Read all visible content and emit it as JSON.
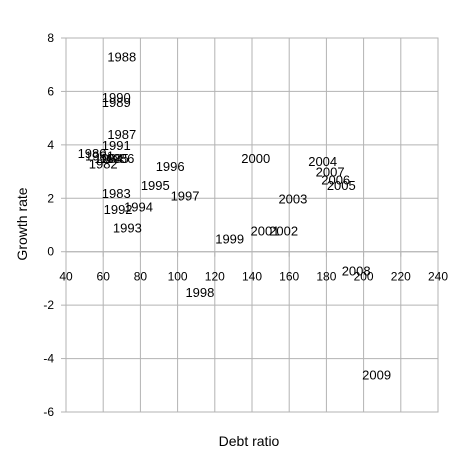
{
  "chart_data": {
    "type": "scatter",
    "title": "",
    "xlabel": "Debt ratio",
    "ylabel": "Growth rate",
    "xlim": [
      40,
      240
    ],
    "ylim": [
      -6,
      8
    ],
    "xticks": [
      40,
      60,
      80,
      100,
      120,
      140,
      160,
      180,
      200,
      220,
      240
    ],
    "yticks": [
      -6,
      -4,
      -2,
      0,
      2,
      4,
      6,
      8
    ],
    "grid": true,
    "legend": "none",
    "marker": "none",
    "points": [
      {
        "label": "1980",
        "x": 54,
        "y": 3.7
      },
      {
        "label": "1981",
        "x": 58,
        "y": 3.6
      },
      {
        "label": "1982",
        "x": 60,
        "y": 3.3
      },
      {
        "label": "1983",
        "x": 67,
        "y": 2.2
      },
      {
        "label": "1984",
        "x": 63,
        "y": 3.5
      },
      {
        "label": "1985",
        "x": 66,
        "y": 3.5
      },
      {
        "label": "1986",
        "x": 69,
        "y": 3.5
      },
      {
        "label": "1987",
        "x": 70,
        "y": 4.4
      },
      {
        "label": "1988",
        "x": 70,
        "y": 7.3
      },
      {
        "label": "1989",
        "x": 67,
        "y": 5.6
      },
      {
        "label": "1990",
        "x": 67,
        "y": 5.8
      },
      {
        "label": "1991",
        "x": 67,
        "y": 4.0
      },
      {
        "label": "1992",
        "x": 68,
        "y": 1.6
      },
      {
        "label": "1993",
        "x": 73,
        "y": 0.9
      },
      {
        "label": "1994",
        "x": 79,
        "y": 1.7
      },
      {
        "label": "1995",
        "x": 88,
        "y": 2.5
      },
      {
        "label": "1996",
        "x": 96,
        "y": 3.2
      },
      {
        "label": "1997",
        "x": 104,
        "y": 2.1
      },
      {
        "label": "1998",
        "x": 112,
        "y": -1.5
      },
      {
        "label": "1999",
        "x": 128,
        "y": 0.5
      },
      {
        "label": "2000",
        "x": 142,
        "y": 3.5
      },
      {
        "label": "2001",
        "x": 147,
        "y": 0.8
      },
      {
        "label": "2002",
        "x": 157,
        "y": 0.8
      },
      {
        "label": "2003",
        "x": 162,
        "y": 2.0
      },
      {
        "label": "2004",
        "x": 178,
        "y": 3.4
      },
      {
        "label": "2005",
        "x": 188,
        "y": 2.5
      },
      {
        "label": "2006",
        "x": 185,
        "y": 2.7
      },
      {
        "label": "2007",
        "x": 182,
        "y": 3.0
      },
      {
        "label": "2008",
        "x": 196,
        "y": -0.7
      },
      {
        "label": "2009",
        "x": 207,
        "y": -4.6
      }
    ]
  }
}
